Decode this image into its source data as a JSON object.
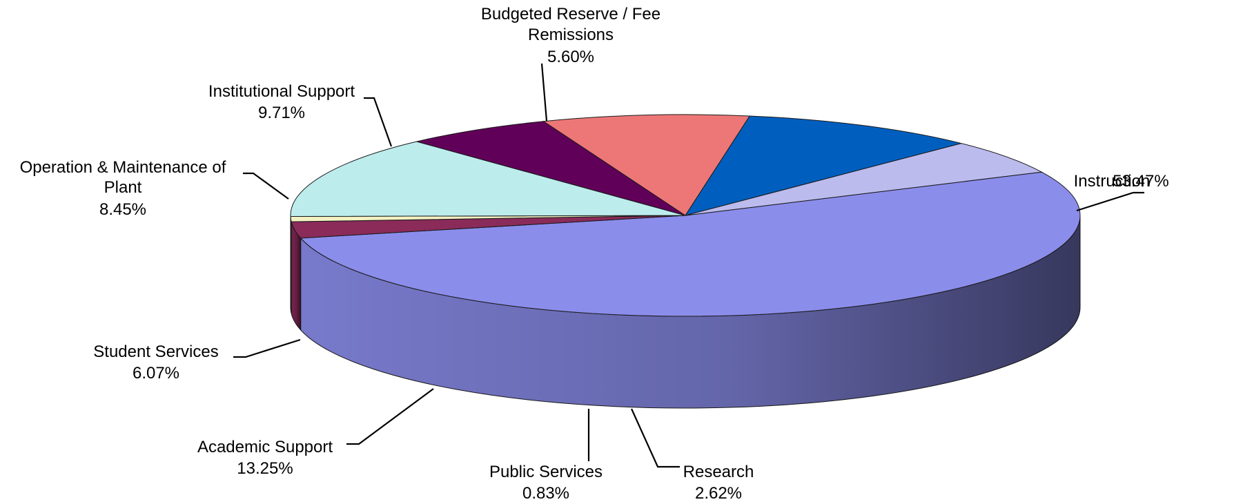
{
  "chart_data": {
    "type": "pie",
    "style": "3d",
    "unit": "%",
    "slices": [
      {
        "name": "Instruction",
        "value": 53.47,
        "label": "53.47%",
        "color": "#8b8deb"
      },
      {
        "name": "Research",
        "value": 2.62,
        "label": "2.62%",
        "color": "#8a2b5a"
      },
      {
        "name": "Public Services",
        "value": 0.83,
        "label": "0.83%",
        "color": "#f3f1c2"
      },
      {
        "name": "Academic Support",
        "value": 13.25,
        "label": "13.25%",
        "color": "#bdeced"
      },
      {
        "name": "Student Services",
        "value": 6.07,
        "label": "6.07%",
        "color": "#600058"
      },
      {
        "name": "Operation & Maintenance of Plant",
        "value": 8.45,
        "label": "8.45%",
        "color": "#ed7777"
      },
      {
        "name": "Institutional Support",
        "value": 9.71,
        "label": "9.71%",
        "color": "#005fbe"
      },
      {
        "name": "Budgeted Reserve / Fee Remissions",
        "value": 5.6,
        "label": "5.60%",
        "color": "#bbbbee"
      }
    ]
  }
}
